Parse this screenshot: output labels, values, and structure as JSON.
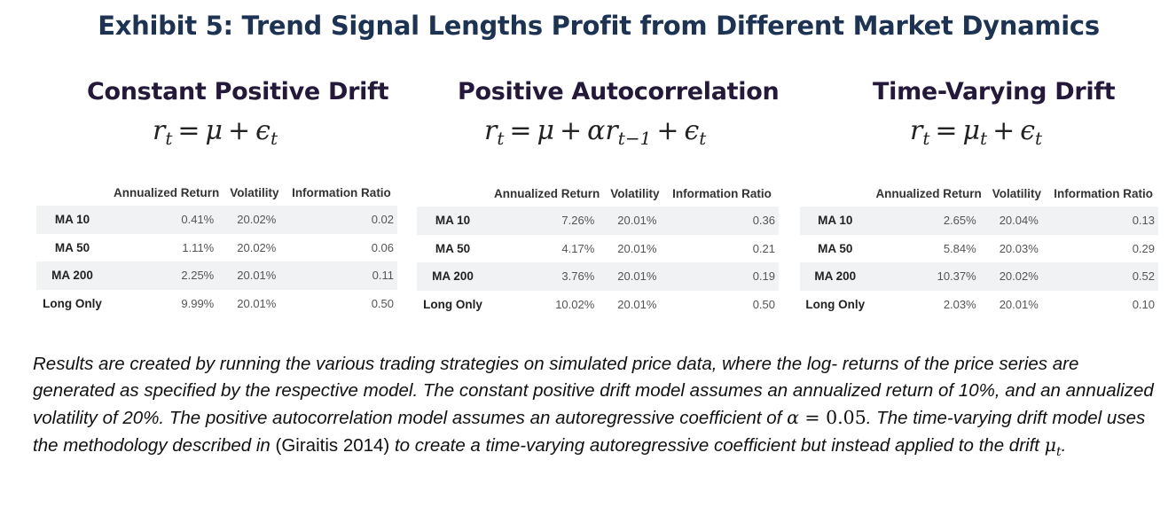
{
  "exhibit_title": "Exhibit 5: Trend Signal Lengths Profit from Different Market Dynamics",
  "columns": [
    "Annualized Return",
    "Volatility",
    "Information Ratio"
  ],
  "panels": [
    {
      "title": "Constant Positive Drift",
      "formula": {
        "lhs": "r",
        "lhs_sub": "t",
        "eq": "=",
        "mu": "μ",
        "plus": "+",
        "eps": "ϵ",
        "eps_sub": "t"
      },
      "rows": [
        {
          "label": "MA 10",
          "ret": "0.41%",
          "vol": "20.02%",
          "ir": "0.02"
        },
        {
          "label": "MA 50",
          "ret": "1.11%",
          "vol": "20.02%",
          "ir": "0.06"
        },
        {
          "label": "MA 200",
          "ret": "2.25%",
          "vol": "20.01%",
          "ir": "0.11"
        },
        {
          "label": "Long Only",
          "ret": "9.99%",
          "vol": "20.01%",
          "ir": "0.50"
        }
      ]
    },
    {
      "title": "Positive Autocorrelation",
      "formula": {
        "lhs": "r",
        "lhs_sub": "t",
        "eq": "=",
        "mu": "μ",
        "plus": "+",
        "alpha_r": "αr",
        "alpha_sub": "t−1",
        "plus2": "+",
        "eps": "ϵ",
        "eps_sub": "t"
      },
      "rows": [
        {
          "label": "MA 10",
          "ret": "7.26%",
          "vol": "20.01%",
          "ir": "0.36"
        },
        {
          "label": "MA 50",
          "ret": "4.17%",
          "vol": "20.01%",
          "ir": "0.21"
        },
        {
          "label": "MA 200",
          "ret": "3.76%",
          "vol": "20.01%",
          "ir": "0.19"
        },
        {
          "label": "Long Only",
          "ret": "10.02%",
          "vol": "20.01%",
          "ir": "0.50"
        }
      ]
    },
    {
      "title": "Time-Varying Drift",
      "formula": {
        "lhs": "r",
        "lhs_sub": "t",
        "eq": "=",
        "mu": "μ",
        "mu_sub": "t",
        "plus": "+",
        "eps": "ϵ",
        "eps_sub": "t"
      },
      "rows": [
        {
          "label": "MA 10",
          "ret": "2.65%",
          "vol": "20.04%",
          "ir": "0.13"
        },
        {
          "label": "MA 50",
          "ret": "5.84%",
          "vol": "20.03%",
          "ir": "0.29"
        },
        {
          "label": "MA 200",
          "ret": "10.37%",
          "vol": "20.02%",
          "ir": "0.52"
        },
        {
          "label": "Long Only",
          "ret": "2.03%",
          "vol": "20.01%",
          "ir": "0.10"
        }
      ]
    }
  ],
  "caption": {
    "s1": "Results are created by running the various trading strategies on simulated price data, where the log- returns of the price series are generated as specified by the respective model. The constant positive drift model assumes an annualized return of 10%, and an annualized volatility of 20%. The positive autocorrelation model assumes an autoregressive coefficient of ",
    "alpha": "α",
    "eq": " = ",
    "alpha_val": "0.05",
    "s2": ". The time-varying drift model uses the methodology described in ",
    "cite": "(Giraitis 2014)",
    "s3": " to create a time-varying autoregressive coefficient but instead applied to the drift ",
    "mu": "μ",
    "mu_sub": "t",
    "end": "."
  }
}
